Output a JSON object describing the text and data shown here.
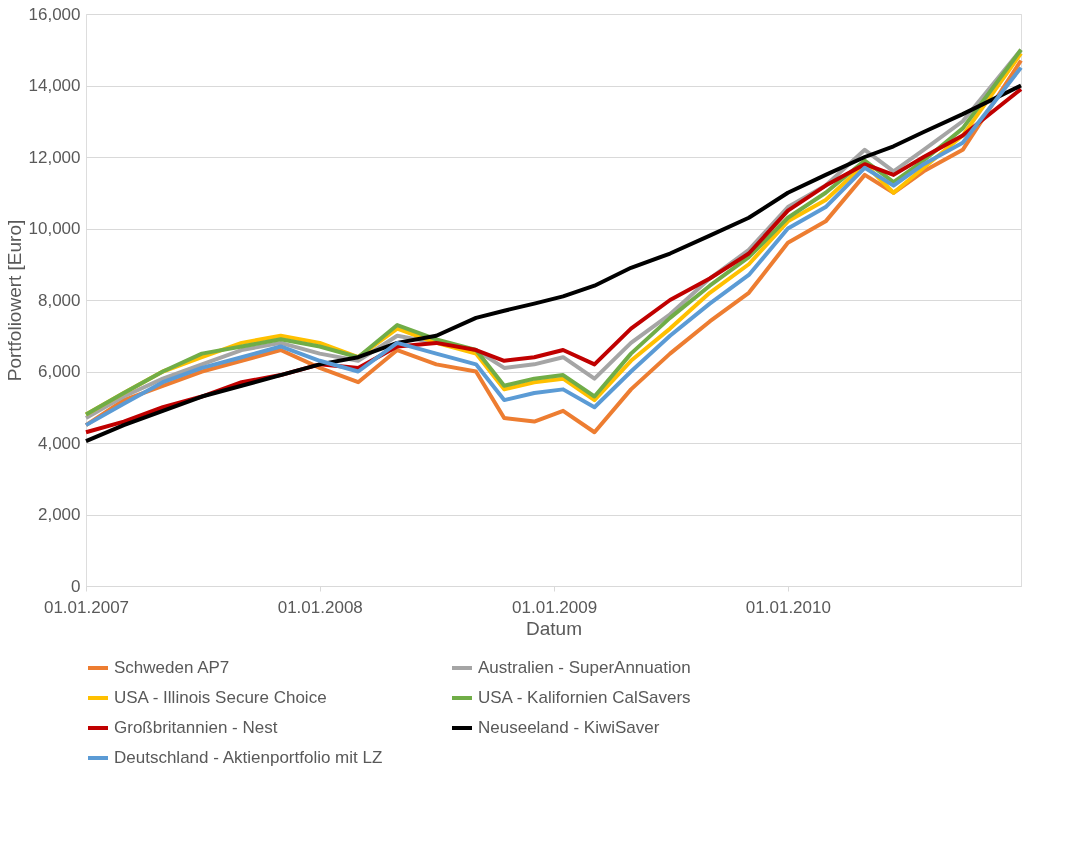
{
  "chart_data": {
    "type": "line",
    "xlabel": "Datum",
    "ylabel": "Portfoliowert [Euro]",
    "x": [
      "2007-01-01",
      "2007-03-01",
      "2007-05-01",
      "2007-07-01",
      "2007-09-01",
      "2007-11-01",
      "2008-01-01",
      "2008-03-01",
      "2008-05-01",
      "2008-07-01",
      "2008-09-01",
      "2008-10-15",
      "2008-12-01",
      "2009-01-15",
      "2009-03-05",
      "2009-05-01",
      "2009-07-01",
      "2009-09-01",
      "2009-11-01",
      "2010-01-01",
      "2010-03-01",
      "2010-05-01",
      "2010-06-15",
      "2010-08-01",
      "2010-10-01",
      "2010-12-31"
    ],
    "series": [
      {
        "name": "Schweden AP7",
        "color": "#ed7d31",
        "values": [
          4500,
          5200,
          5600,
          6000,
          6300,
          6600,
          6100,
          5700,
          6600,
          6200,
          6000,
          4700,
          4600,
          4900,
          4300,
          5500,
          6500,
          7400,
          8200,
          9600,
          10200,
          11500,
          11000,
          11600,
          12200,
          14700
        ]
      },
      {
        "name": "Australien - SuperAnnuation",
        "color": "#a5a5a5",
        "values": [
          4700,
          5300,
          5800,
          6200,
          6600,
          6800,
          6500,
          6300,
          7000,
          6800,
          6600,
          6100,
          6200,
          6400,
          5800,
          6800,
          7600,
          8600,
          9400,
          10600,
          11200,
          12200,
          11600,
          12200,
          13000,
          15000
        ]
      },
      {
        "name": "USA - Illinois Secure Choice",
        "color": "#ffc000",
        "values": [
          4800,
          5400,
          6000,
          6400,
          6800,
          7000,
          6800,
          6400,
          7200,
          6800,
          6500,
          5500,
          5700,
          5800,
          5200,
          6300,
          7200,
          8200,
          9000,
          10200,
          10800,
          11800,
          11000,
          11700,
          12600,
          14900
        ]
      },
      {
        "name": "USA - Kalifornien CalSavers",
        "color": "#70ad47",
        "values": [
          4800,
          5400,
          6000,
          6500,
          6700,
          6900,
          6700,
          6400,
          7300,
          6900,
          6600,
          5600,
          5800,
          5900,
          5300,
          6500,
          7500,
          8400,
          9200,
          10300,
          11000,
          11900,
          11300,
          11900,
          12800,
          15000
        ]
      },
      {
        "name": "Großbritannien - Nest",
        "color": "#c00000",
        "values": [
          4300,
          4600,
          5000,
          5300,
          5700,
          5900,
          6200,
          6100,
          6700,
          6800,
          6600,
          6300,
          6400,
          6600,
          6200,
          7200,
          8000,
          8600,
          9300,
          10500,
          11200,
          11800,
          11500,
          12000,
          12600,
          13900
        ]
      },
      {
        "name": "Neuseeland - KiwiSaver",
        "color": "#000000",
        "values": [
          4050,
          4500,
          4900,
          5300,
          5600,
          5900,
          6200,
          6400,
          6800,
          7000,
          7500,
          7700,
          7900,
          8100,
          8400,
          8900,
          9300,
          9800,
          10300,
          11000,
          11500,
          12000,
          12300,
          12700,
          13200,
          14000
        ]
      },
      {
        "name": "Deutschland - Aktienportfolio mit LZ",
        "color": "#5b9bd5",
        "values": [
          4500,
          5100,
          5700,
          6100,
          6400,
          6700,
          6300,
          6000,
          6800,
          6500,
          6200,
          5200,
          5400,
          5500,
          5000,
          6000,
          7000,
          7900,
          8700,
          10000,
          10600,
          11700,
          11200,
          11800,
          12400,
          14500
        ]
      }
    ],
    "ylim": [
      0,
      16000
    ],
    "yticks": [
      {
        "value": 0,
        "label": "0"
      },
      {
        "value": 2000,
        "label": "2,000"
      },
      {
        "value": 4000,
        "label": "4,000"
      },
      {
        "value": 6000,
        "label": "6,000"
      },
      {
        "value": 8000,
        "label": "8,000"
      },
      {
        "value": 10000,
        "label": "10,000"
      },
      {
        "value": 12000,
        "label": "12,000"
      },
      {
        "value": 14000,
        "label": "14,000"
      },
      {
        "value": 16000,
        "label": "16,000"
      }
    ],
    "xlim": [
      "2007-01-01",
      "2010-12-31"
    ],
    "xticks": [
      {
        "value": "2007-01-01",
        "label": "01.01.2007"
      },
      {
        "value": "2008-01-01",
        "label": "01.01.2008"
      },
      {
        "value": "2009-01-01",
        "label": "01.01.2009"
      },
      {
        "value": "2010-01-01",
        "label": "01.01.2010"
      }
    ],
    "grid": "y",
    "legend": "bottom",
    "marker": "none",
    "line_style": "solid"
  }
}
